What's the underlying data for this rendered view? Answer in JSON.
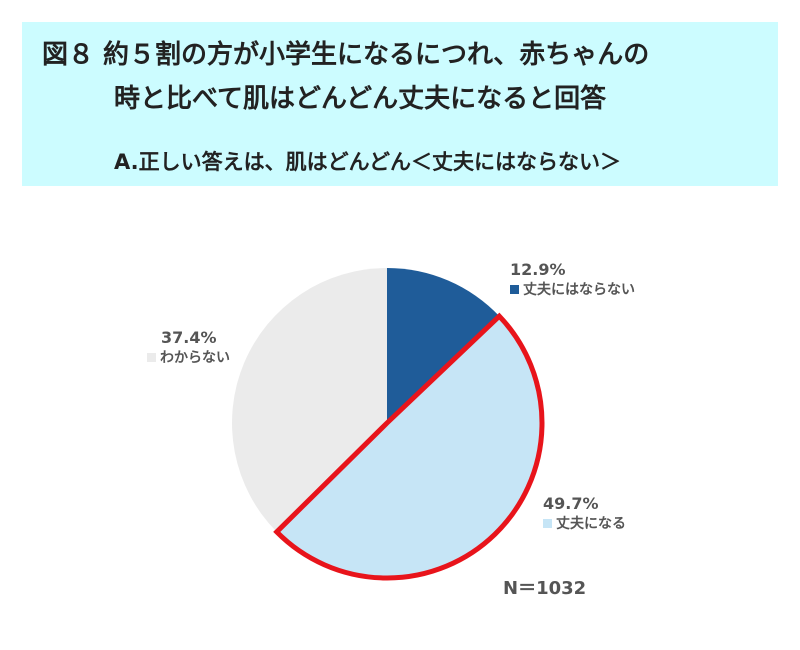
{
  "header": {
    "title_line1": "図８ 約５割の方が小学生になるにつれ、赤ちゃんの",
    "title_line2": "時と比べて肌はどんどん丈夫になると回答",
    "subtitle": "A.正しい答えは、肌はどんどん＜丈夫にはならない＞"
  },
  "chart_data": {
    "type": "pie",
    "title": "",
    "start": "12 o'clock, clockwise",
    "slices": [
      {
        "label": "丈夫にはならない",
        "value": 12.9,
        "value_label": "12.9%",
        "color": "#1f5c99",
        "highlight": false
      },
      {
        "label": "丈夫になる",
        "value": 49.7,
        "value_label": "49.7%",
        "color": "#c6e5f6",
        "highlight": true,
        "highlight_color": "#e8141b"
      },
      {
        "label": "わからない",
        "value": 37.4,
        "value_label": "37.4%",
        "color": "#ebebeb",
        "highlight": false
      }
    ],
    "annotation": "N＝1032"
  }
}
